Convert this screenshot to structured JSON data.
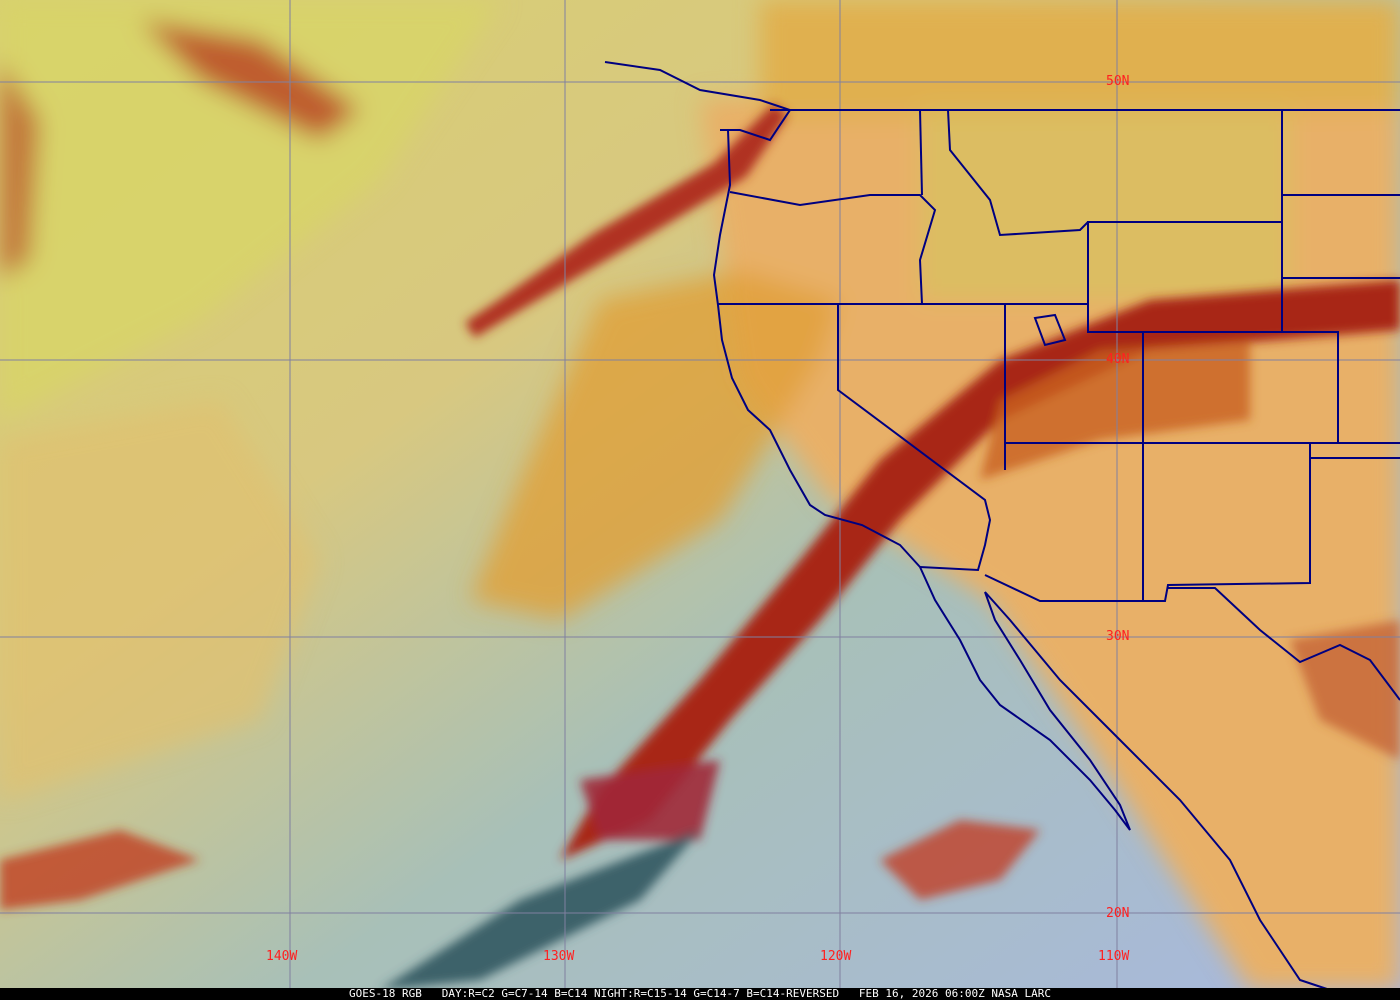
{
  "map": {
    "caption": "GOES-18 RGB   DAY:R=C2 G=C7-14 B=C14 NIGHT:R=C15-14 G=C14-7 B=C14-REVERSED   FEB 16, 2026 06:00Z NASA LARC",
    "lat_labels": [
      "50N",
      "40N",
      "30N",
      "20N"
    ],
    "lon_labels": [
      "140W",
      "130W",
      "120W",
      "110W"
    ],
    "colors": {
      "grid": "#8080a0",
      "boundaries": "#000080",
      "labels": "#ff2020",
      "ocean_clear": "#9fc0c8",
      "cloud_low": "#e8b048",
      "cloud_high": "#a02818"
    }
  }
}
